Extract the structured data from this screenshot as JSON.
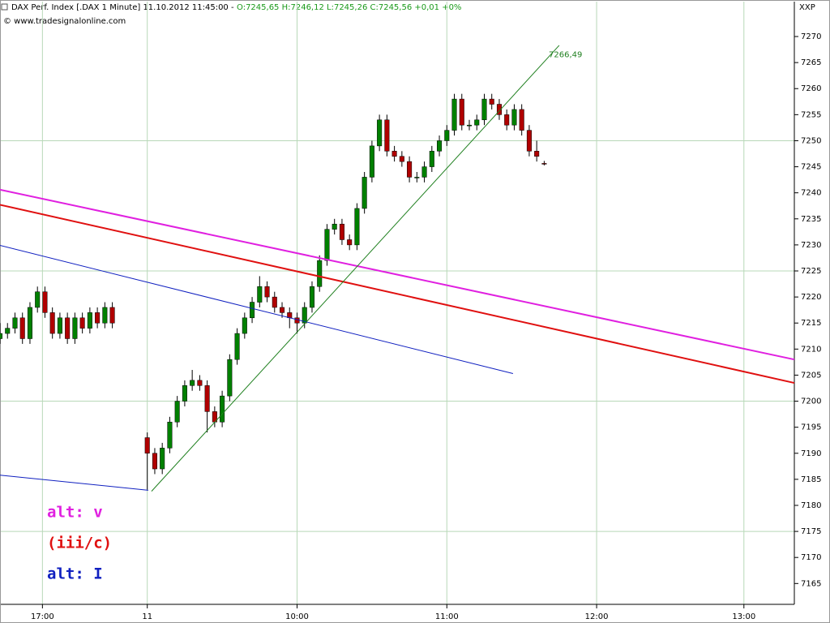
{
  "chart_data": {
    "type": "candlestick",
    "title": "DAX Perf. Index [.DAX  1 Minute] 11.10.2012 11:45:00 -",
    "subtitle": "O:7245,65 H:7246,12 L:7245,26 C:7245,56 +0,01 +0%",
    "source": "© www.tradesignalonline.com",
    "symbol": "XXP",
    "up_color": "#008000",
    "down_color": "#b00000",
    "ylim": [
      7161,
      7276.7
    ],
    "yticks": [
      7165,
      7170,
      7175,
      7180,
      7185,
      7190,
      7195,
      7200,
      7205,
      7210,
      7215,
      7220,
      7225,
      7230,
      7235,
      7240,
      7245,
      7250,
      7255,
      7260,
      7265,
      7270
    ],
    "xlim": [
      0,
      318.2
    ],
    "xticks": [
      {
        "value": 17,
        "label": "17:00"
      },
      {
        "value": 59,
        "label": "11"
      },
      {
        "value": 119,
        "label": "10:00"
      },
      {
        "value": 179,
        "label": "11:00"
      },
      {
        "value": 239,
        "label": "12:00"
      },
      {
        "value": 298,
        "label": "13:00"
      }
    ],
    "grid": true,
    "candles": [
      [
        0,
        7212,
        7215,
        7211,
        7213
      ],
      [
        3,
        7213,
        7215,
        7212,
        7214
      ],
      [
        6,
        7214,
        7217,
        7213,
        7216
      ],
      [
        9,
        7216,
        7217,
        7211,
        7212
      ],
      [
        12,
        7212,
        7219,
        7211,
        7218
      ],
      [
        15,
        7218,
        7222,
        7217,
        7221
      ],
      [
        18,
        7221,
        7222,
        7216,
        7217
      ],
      [
        21,
        7217,
        7218,
        7212,
        7213
      ],
      [
        24,
        7213,
        7217,
        7212,
        7216
      ],
      [
        27,
        7216,
        7217,
        7211,
        7212
      ],
      [
        30,
        7212,
        7217,
        7211,
        7216
      ],
      [
        33,
        7216,
        7217,
        7213,
        7214
      ],
      [
        36,
        7214,
        7218,
        7213,
        7217
      ],
      [
        39,
        7217,
        7218,
        7214,
        7215
      ],
      [
        42,
        7215,
        7219,
        7214,
        7218
      ],
      [
        45,
        7218,
        7219,
        7214,
        7215
      ],
      [
        59,
        7193,
        7194,
        7183,
        7190
      ],
      [
        62,
        7190,
        7191,
        7186,
        7187
      ],
      [
        65,
        7187,
        7192,
        7186,
        7191
      ],
      [
        68,
        7191,
        7197,
        7190,
        7196
      ],
      [
        71,
        7196,
        7201,
        7195,
        7200
      ],
      [
        74,
        7200,
        7204,
        7199,
        7203
      ],
      [
        77,
        7203,
        7206,
        7202,
        7204
      ],
      [
        80,
        7204,
        7205,
        7202,
        7203
      ],
      [
        83,
        7203,
        7204,
        7194,
        7198
      ],
      [
        86,
        7198,
        7199,
        7195,
        7196
      ],
      [
        89,
        7196,
        7202,
        7195,
        7201
      ],
      [
        92,
        7201,
        7209,
        7200,
        7208
      ],
      [
        95,
        7208,
        7214,
        7207,
        7213
      ],
      [
        98,
        7213,
        7217,
        7212,
        7216
      ],
      [
        101,
        7216,
        7220,
        7215,
        7219
      ],
      [
        104,
        7219,
        7224,
        7218,
        7222
      ],
      [
        107,
        7222,
        7223,
        7219,
        7220
      ],
      [
        110,
        7220,
        7221,
        7217,
        7218
      ],
      [
        113,
        7218,
        7219,
        7216,
        7217
      ],
      [
        116,
        7217,
        7218,
        7214,
        7216
      ],
      [
        119,
        7216,
        7217,
        7213,
        7215
      ],
      [
        122,
        7215,
        7219,
        7214,
        7218
      ],
      [
        125,
        7218,
        7223,
        7217,
        7222
      ],
      [
        128,
        7222,
        7228,
        7221,
        7227
      ],
      [
        131,
        7227,
        7234,
        7226,
        7233
      ],
      [
        134,
        7233,
        7235,
        7232,
        7234
      ],
      [
        137,
        7234,
        7235,
        7230,
        7231
      ],
      [
        140,
        7231,
        7232,
        7229,
        7230
      ],
      [
        143,
        7230,
        7238,
        7229,
        7237
      ],
      [
        146,
        7237,
        7244,
        7236,
        7243
      ],
      [
        149,
        7243,
        7250,
        7242,
        7249
      ],
      [
        152,
        7249,
        7255,
        7248,
        7254
      ],
      [
        155,
        7254,
        7255,
        7247,
        7248
      ],
      [
        158,
        7248,
        7249,
        7246,
        7247
      ],
      [
        161,
        7247,
        7248,
        7245,
        7246
      ],
      [
        164,
        7246,
        7247,
        7242,
        7243
      ],
      [
        167,
        7243,
        7244,
        7242,
        7243
      ],
      [
        170,
        7243,
        7246,
        7242,
        7245
      ],
      [
        173,
        7245,
        7249,
        7244,
        7248
      ],
      [
        176,
        7248,
        7251,
        7247,
        7250
      ],
      [
        179,
        7250,
        7253,
        7249,
        7252
      ],
      [
        182,
        7252,
        7259,
        7251,
        7258
      ],
      [
        185,
        7258,
        7259,
        7252,
        7253
      ],
      [
        188,
        7253,
        7254,
        7252,
        7253
      ],
      [
        191,
        7253,
        7255,
        7252,
        7254
      ],
      [
        194,
        7254,
        7259,
        7253,
        7258
      ],
      [
        197,
        7258,
        7259,
        7256,
        7257
      ],
      [
        200,
        7257,
        7258,
        7254,
        7255
      ],
      [
        203,
        7255,
        7256,
        7252,
        7253
      ],
      [
        206,
        7253,
        7257,
        7252,
        7256
      ],
      [
        209,
        7256,
        7257,
        7251,
        7252
      ],
      [
        212,
        7252,
        7253,
        7247,
        7248
      ],
      [
        215,
        7248,
        7250,
        7246,
        7247
      ],
      [
        218,
        7245.65,
        7246.12,
        7245.26,
        7245.56
      ]
    ],
    "lines": [
      {
        "color": "#e020e0",
        "width": 2,
        "x": [
          0,
          318.2
        ],
        "y": [
          7240.6,
          7208.0
        ]
      },
      {
        "color": "#e01010",
        "width": 2,
        "x": [
          0,
          318.2
        ],
        "y": [
          7237.7,
          7203.5
        ]
      },
      {
        "color": "#1020c0",
        "width": 1,
        "x": [
          0,
          205.5
        ],
        "y": [
          7229.9,
          7205.3
        ]
      },
      {
        "color": "#1020c0",
        "width": 1,
        "x": [
          0,
          59.4
        ],
        "y": [
          7185.8,
          7182.9
        ]
      },
      {
        "color": "#208020",
        "width": 1,
        "x": [
          60.7,
          224
        ],
        "y": [
          7182.7,
          7268.3
        ]
      }
    ],
    "price_label": {
      "text": "7266,49",
      "value": 7266.49,
      "color": "#208020"
    },
    "wave_labels": [
      {
        "text": "alt: v",
        "color": "#e020e0"
      },
      {
        "text": "(iii/c)",
        "color": "#e01010"
      },
      {
        "text": "alt: I",
        "color": "#1020c0"
      }
    ]
  }
}
